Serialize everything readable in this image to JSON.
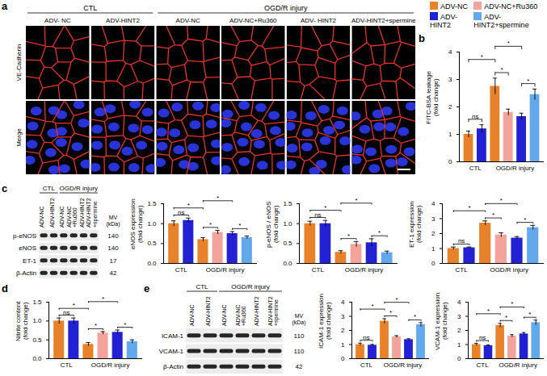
{
  "panels": [
    "a",
    "b",
    "c",
    "d",
    "e"
  ],
  "legend": [
    {
      "name": "ADV-NC",
      "color": "#e8822a"
    },
    {
      "name": "ADV-HINT2",
      "color": "#2222d4"
    },
    {
      "name": "ADV-NC+Ru360",
      "color": "#f2a39b"
    },
    {
      "name": "ADV-HINT2+spermine",
      "color": "#62a8ea"
    }
  ],
  "images": {
    "rows": [
      "VE-Cadherin",
      "Merge"
    ],
    "columns": [
      "ADV- NC",
      "ADV-HINT2",
      "ADV-NC",
      "ADV-NC+Ru360",
      "ADV- HINT2",
      "ADV-HINT2+spermine"
    ],
    "groups": [
      "CTL",
      "CTL",
      "OGD/R injury",
      "OGD/R injury",
      "OGD/R injury",
      "OGD/R injury"
    ]
  },
  "blots": [
    {
      "columns": [
        "ADV-NC",
        "ADV-HINT2",
        "ADV-NC",
        "ADV-NC\n+Ru360",
        "ADV-HINT2",
        "ADV-HINT2\n+spermine"
      ],
      "groups": [
        "CTL",
        "CTL",
        "OGD/R injury",
        "OGD/R injury",
        "OGD/R injury",
        "OGD/R injury"
      ],
      "mw_header": "MV\n(kDa)",
      "rows": [
        {
          "label": "p-eNOS",
          "mw": 140
        },
        {
          "label": "eNOS",
          "mw": 140
        },
        {
          "label": "ET-1",
          "mw": 17
        },
        {
          "label": "β-Actin",
          "mw": 42
        }
      ]
    },
    {
      "columns": [
        "ADV-NC",
        "ADV-HINT2",
        "ADV-NC",
        "ADV-NC\n+Ru360",
        "ADV-HINT2",
        "ADV-HINT2\n+spermine"
      ],
      "groups": [
        "CTL",
        "CTL",
        "OGD/R injury",
        "OGD/R injury",
        "OGD/R injury",
        "OGD/R injury"
      ],
      "mw_header": "MV\n(kDa)",
      "rows": [
        {
          "label": "ICAM-1",
          "mw": 110
        },
        {
          "label": "VCAM-1",
          "mw": 110
        },
        {
          "label": "β-Actin",
          "mw": 42
        }
      ]
    }
  ],
  "chart_data": [
    {
      "type": "bar",
      "ylabel": "FITC-BSA leakage\n(fold change)",
      "categories": [
        "ADV-NC",
        "ADV-HINT2",
        "ADV-NC",
        "ADV-NC+Ru360",
        "ADV-HINT2",
        "ADV-HINT2+spermine"
      ],
      "groups": [
        "CTL",
        "CTL",
        "OGD/R injury",
        "OGD/R injury",
        "OGD/R injury",
        "OGD/R injury"
      ],
      "values": [
        1.0,
        1.2,
        2.75,
        1.8,
        1.65,
        2.45
      ],
      "errors": [
        0.12,
        0.15,
        0.3,
        0.12,
        0.12,
        0.2
      ],
      "colors": [
        "#e8822a",
        "#2222d4",
        "#e8822a",
        "#f2a39b",
        "#2222d4",
        "#62a8ea"
      ],
      "ylim": [
        0,
        4
      ],
      "yticks": [
        0,
        1,
        2,
        3,
        4
      ],
      "tick_labels": "y",
      "comparisons": [
        {
          "from": 0,
          "to": 1,
          "label": "ns"
        },
        {
          "from": 0,
          "to": 2,
          "label": "*"
        },
        {
          "from": 2,
          "to": 3,
          "label": "*"
        },
        {
          "from": 2,
          "to": 4,
          "label": "*"
        },
        {
          "from": 4,
          "to": 5,
          "label": "*"
        }
      ]
    },
    {
      "type": "bar",
      "ylabel": "eNOS expression\n(fold change)",
      "categories": [
        "ADV-NC",
        "ADV-HINT2",
        "ADV-NC",
        "ADV-NC+Ru360",
        "ADV-HINT2",
        "ADV-HINT2+spermine"
      ],
      "groups": [
        "CTL",
        "CTL",
        "OGD/R injury",
        "OGD/R injury",
        "OGD/R injury",
        "OGD/R injury"
      ],
      "values": [
        1.0,
        1.08,
        0.6,
        0.78,
        0.75,
        0.65
      ],
      "errors": [
        0.07,
        0.06,
        0.05,
        0.05,
        0.05,
        0.04
      ],
      "colors": [
        "#e8822a",
        "#2222d4",
        "#e8822a",
        "#f2a39b",
        "#2222d4",
        "#62a8ea"
      ],
      "ylim": [
        0,
        1.5
      ],
      "yticks": [
        {
          "value": 0,
          "label": "0.0"
        },
        0.5,
        {
          "value": 1,
          "label": "1.0"
        },
        1.5
      ],
      "tick_labels": "y",
      "comparisons": [
        {
          "from": 0,
          "to": 1,
          "label": "ns"
        },
        {
          "from": 0,
          "to": 2,
          "label": "*"
        },
        {
          "from": 2,
          "to": 3,
          "label": "*"
        },
        {
          "from": 2,
          "to": 4,
          "label": "*"
        },
        {
          "from": 4,
          "to": 5,
          "label": "*"
        }
      ]
    },
    {
      "type": "bar",
      "ylabel": "p-eNOS / eNOS\n(fold change)",
      "categories": [
        "ADV-NC",
        "ADV-HINT2",
        "ADV-NC",
        "ADV-NC+Ru360",
        "ADV-HINT2",
        "ADV-HINT2+spermine"
      ],
      "groups": [
        "CTL",
        "CTL",
        "OGD/R injury",
        "OGD/R injury",
        "OGD/R injury",
        "OGD/R injury"
      ],
      "values": [
        1.0,
        1.0,
        0.28,
        0.48,
        0.52,
        0.27
      ],
      "errors": [
        0.06,
        0.08,
        0.04,
        0.07,
        0.1,
        0.04
      ],
      "colors": [
        "#e8822a",
        "#2222d4",
        "#e8822a",
        "#f2a39b",
        "#2222d4",
        "#62a8ea"
      ],
      "ylim": [
        0,
        1.5
      ],
      "yticks": [
        {
          "value": 0,
          "label": "0.0"
        },
        0.5,
        {
          "value": 1,
          "label": "1.0"
        },
        1.5
      ],
      "tick_labels": "y",
      "comparisons": [
        {
          "from": 0,
          "to": 1,
          "label": "ns"
        },
        {
          "from": 0,
          "to": 2,
          "label": "*"
        },
        {
          "from": 2,
          "to": 3,
          "label": "*"
        },
        {
          "from": 2,
          "to": 4,
          "label": "*"
        },
        {
          "from": 4,
          "to": 5,
          "label": "*"
        }
      ]
    },
    {
      "type": "bar",
      "ylabel": "ET-1 expression\n(fold change)",
      "categories": [
        "ADV-NC",
        "ADV-HINT2",
        "ADV-NC",
        "ADV-NC+Ru360",
        "ADV-HINT2",
        "ADV-HINT2+spermine"
      ],
      "groups": [
        "CTL",
        "CTL",
        "OGD/R injury",
        "OGD/R injury",
        "OGD/R injury",
        "OGD/R injury"
      ],
      "values": [
        1.0,
        1.05,
        2.7,
        1.9,
        1.7,
        2.4
      ],
      "errors": [
        0.1,
        0.05,
        0.15,
        0.15,
        0.1,
        0.15
      ],
      "colors": [
        "#e8822a",
        "#2222d4",
        "#e8822a",
        "#f2a39b",
        "#2222d4",
        "#62a8ea"
      ],
      "ylim": [
        0,
        4
      ],
      "yticks": [
        0,
        1,
        2,
        3,
        4
      ],
      "tick_labels": "y",
      "comparisons": [
        {
          "from": 0,
          "to": 1,
          "label": "ns"
        },
        {
          "from": 0,
          "to": 2,
          "label": "*"
        },
        {
          "from": 2,
          "to": 3,
          "label": "*"
        },
        {
          "from": 2,
          "to": 4,
          "label": "*"
        },
        {
          "from": 4,
          "to": 5,
          "label": "*"
        }
      ]
    },
    {
      "type": "bar",
      "ylabel": "Nitrite content\n(fold change)",
      "categories": [
        "ADV-NC",
        "ADV-HINT2",
        "ADV-NC",
        "ADV-NC+Ru360",
        "ADV-HINT2",
        "ADV-HINT2+spermine"
      ],
      "groups": [
        "CTL",
        "CTL",
        "OGD/R injury",
        "OGD/R injury",
        "OGD/R injury",
        "OGD/R injury"
      ],
      "values": [
        1.0,
        1.0,
        0.38,
        0.68,
        0.7,
        0.45
      ],
      "errors": [
        0.08,
        0.08,
        0.05,
        0.04,
        0.06,
        0.05
      ],
      "colors": [
        "#e8822a",
        "#2222d4",
        "#e8822a",
        "#f2a39b",
        "#2222d4",
        "#62a8ea"
      ],
      "ylim": [
        0,
        1.5
      ],
      "yticks": [
        {
          "value": 0,
          "label": "0.0"
        },
        0.5,
        {
          "value": 1,
          "label": "1.0"
        },
        1.5
      ],
      "tick_labels": "y",
      "comparisons": [
        {
          "from": 0,
          "to": 1,
          "label": "ns"
        },
        {
          "from": 0,
          "to": 2,
          "label": "*"
        },
        {
          "from": 2,
          "to": 3,
          "label": "*"
        },
        {
          "from": 2,
          "to": 4,
          "label": "*"
        },
        {
          "from": 4,
          "to": 5,
          "label": "*"
        }
      ]
    },
    {
      "type": "bar",
      "ylabel": "ICAM-1 expression\n(fold change)",
      "categories": [
        "ADV-NC",
        "ADV-HINT2",
        "ADV-NC",
        "ADV-NC+Ru360",
        "ADV-HINT2",
        "ADV-HINT2+spermine"
      ],
      "groups": [
        "CTL",
        "CTL",
        "OGD/R injury",
        "OGD/R injury",
        "OGD/R injury",
        "OGD/R injury"
      ],
      "values": [
        1.0,
        0.95,
        2.65,
        1.55,
        1.35,
        2.4
      ],
      "errors": [
        0.1,
        0.06,
        0.18,
        0.08,
        0.06,
        0.15
      ],
      "colors": [
        "#e8822a",
        "#2222d4",
        "#e8822a",
        "#f2a39b",
        "#2222d4",
        "#62a8ea"
      ],
      "ylim": [
        0,
        4
      ],
      "yticks": [
        0,
        1,
        2,
        3,
        4
      ],
      "tick_labels": "y",
      "comparisons": [
        {
          "from": 0,
          "to": 1,
          "label": "ns"
        },
        {
          "from": 0,
          "to": 2,
          "label": "*"
        },
        {
          "from": 2,
          "to": 3,
          "label": "*"
        },
        {
          "from": 2,
          "to": 4,
          "label": "*"
        },
        {
          "from": 4,
          "to": 5,
          "label": "*"
        }
      ]
    },
    {
      "type": "bar",
      "ylabel": "VCAM-1 expression\n(fold change)",
      "categories": [
        "ADV-NC",
        "ADV-HINT2",
        "ADV-NC",
        "ADV-NC+Ru360",
        "ADV-HINT2",
        "ADV-HINT2+spermine"
      ],
      "groups": [
        "CTL",
        "CTL",
        "OGD/R injury",
        "OGD/R injury",
        "OGD/R injury",
        "OGD/R injury"
      ],
      "values": [
        1.0,
        0.92,
        2.35,
        1.6,
        1.75,
        2.55
      ],
      "errors": [
        0.08,
        0.05,
        0.15,
        0.1,
        0.1,
        0.18
      ],
      "colors": [
        "#e8822a",
        "#2222d4",
        "#e8822a",
        "#f2a39b",
        "#2222d4",
        "#62a8ea"
      ],
      "ylim": [
        0,
        4
      ],
      "yticks": [
        0,
        1,
        2,
        3,
        4
      ],
      "tick_labels": "y",
      "comparisons": [
        {
          "from": 0,
          "to": 1,
          "label": "ns"
        },
        {
          "from": 0,
          "to": 2,
          "label": "*"
        },
        {
          "from": 2,
          "to": 3,
          "label": "*"
        },
        {
          "from": 2,
          "to": 4,
          "label": "*"
        },
        {
          "from": 4,
          "to": 5,
          "label": "*"
        }
      ]
    }
  ]
}
